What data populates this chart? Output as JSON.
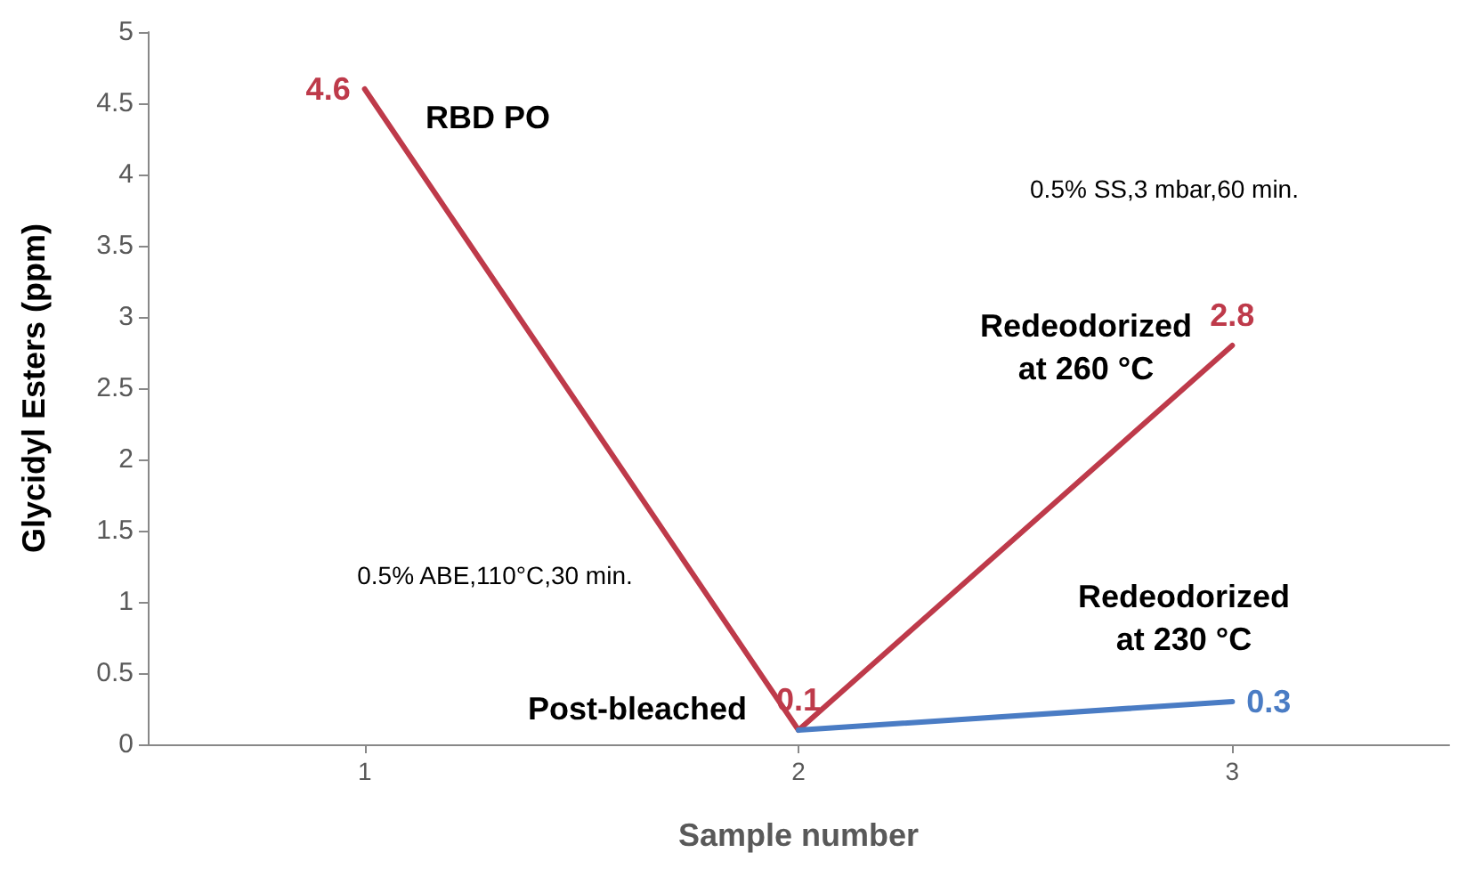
{
  "chart_data": {
    "type": "line",
    "xlabel": "Sample number",
    "ylabel": "Glycidyl Esters (ppm)",
    "xlim": [
      0.5,
      3.5
    ],
    "xticks": [
      1,
      2,
      3
    ],
    "ylim": [
      0,
      5
    ],
    "yticks": [
      0,
      0.5,
      1,
      1.5,
      2,
      2.5,
      3,
      3.5,
      4,
      4.5,
      5
    ],
    "series": [
      {
        "color": "#be3a4a",
        "x": [
          1,
          2,
          3
        ],
        "values": [
          4.6,
          0.1,
          2.8
        ],
        "value_labels": [
          "4.6",
          "0.1",
          "2.8"
        ]
      },
      {
        "color": "#4a7cc4",
        "x": [
          2,
          3
        ],
        "values": [
          0.1,
          0.3
        ],
        "value_labels": [
          null,
          "0.3"
        ]
      }
    ],
    "annotations": [
      "RBD PO",
      "0.5% SS,3 mbar,60 min.",
      "Redeodorized\nat 260 °C",
      "0.5% ABE,110°C,30 min.",
      "Redeodorized\nat 230 °C",
      "Post-bleached"
    ],
    "grid": false,
    "marker": "none",
    "line_style": "solid"
  }
}
